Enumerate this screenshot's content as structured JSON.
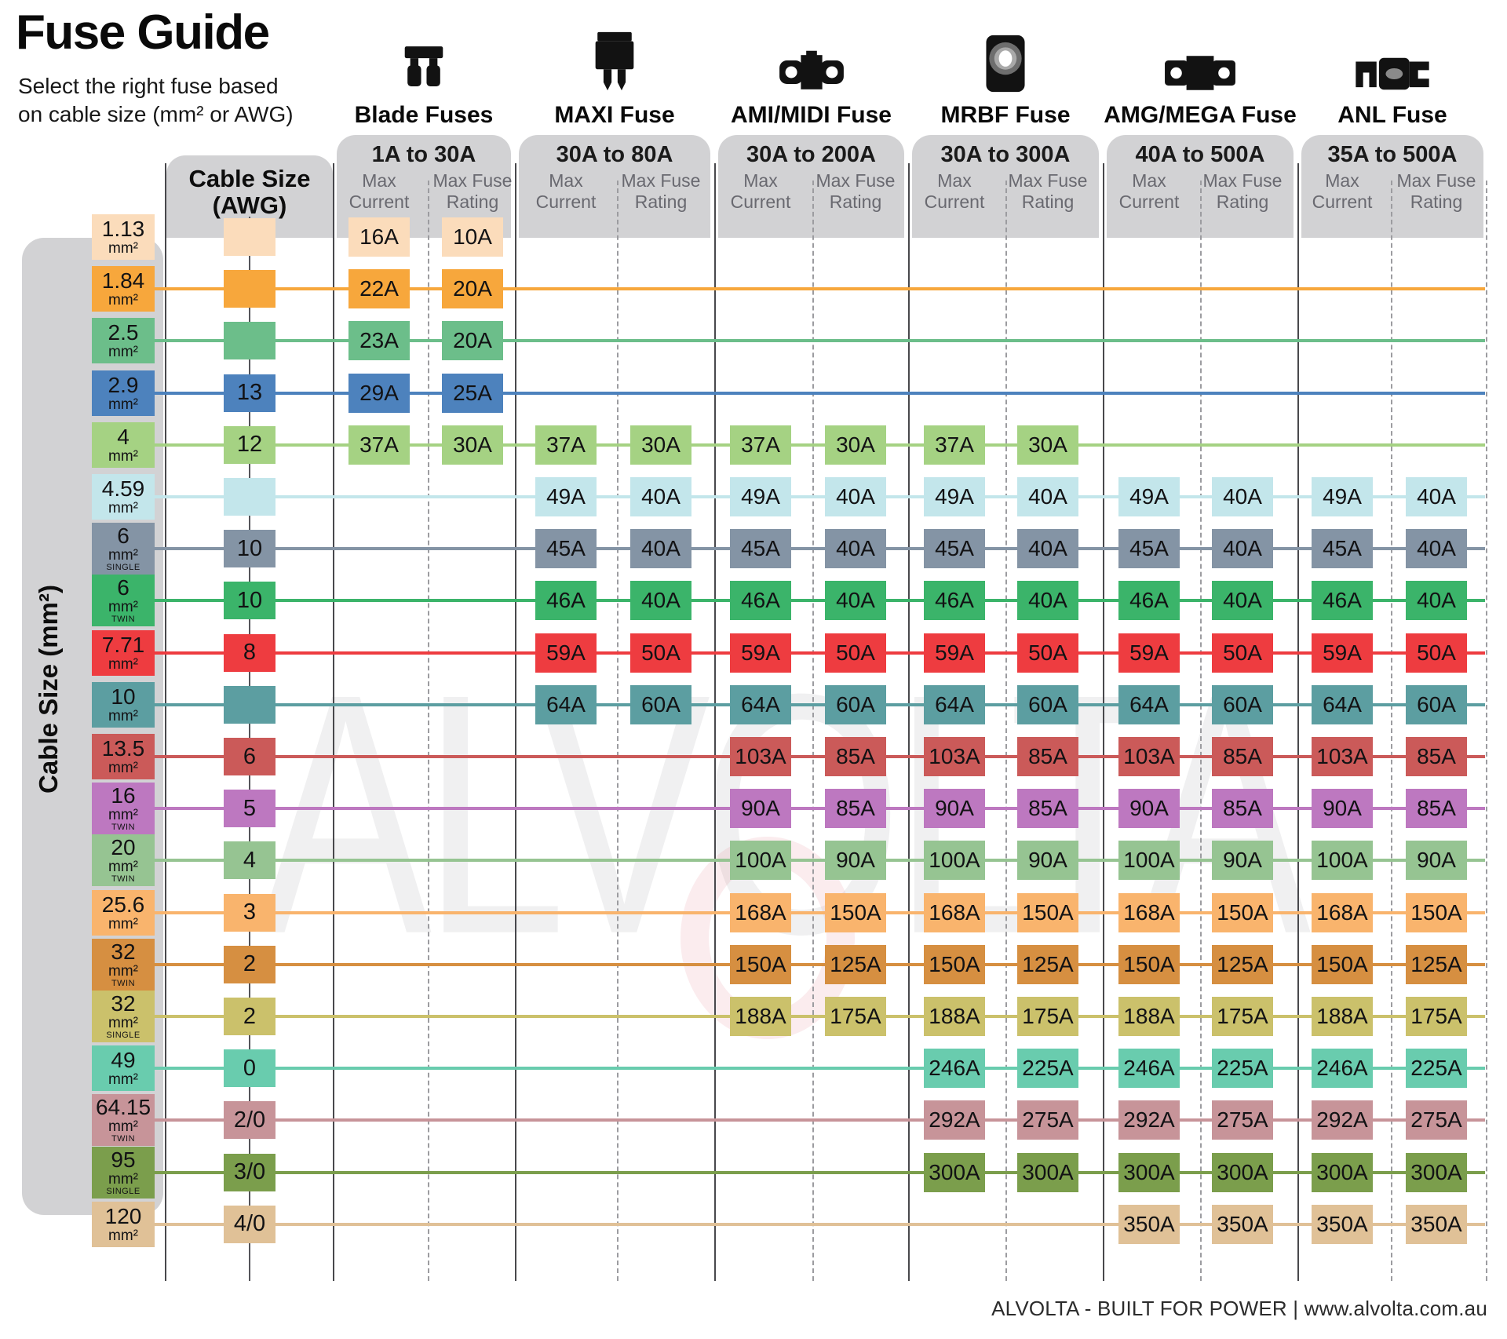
{
  "title": "Fuse Guide",
  "subtitle": {
    "line1": "Select the right fuse based",
    "line2": "on cable size (mm² or AWG)"
  },
  "left_axis_label": "Cable Size (mm²)",
  "awg_header": {
    "line1": "Cable Size",
    "line2": "(AWG)"
  },
  "watermark": {
    "text": "ALVOLTA"
  },
  "footer": "ALVOLTA - BUILT FOR POWER | www.alvolta.com.au",
  "colors": {
    "header_gray": "#d2d2d4",
    "accent_red": "#ee3c40"
  },
  "chart_data": {
    "type": "table",
    "title": "Fuse Guide",
    "mm2_unit": "mm²",
    "sub_columns": [
      "Max Current",
      "Max Fuse Rating"
    ],
    "col_groups": [
      {
        "name": "Blade Fuses",
        "range": "1A to 30A",
        "icon": "blade-fuse-icon"
      },
      {
        "name": "MAXI Fuse",
        "range": "30A to 80A",
        "icon": "maxi-fuse-icon"
      },
      {
        "name": "AMI/MIDI Fuse",
        "range": "30A to 200A",
        "icon": "ami-midi-fuse-icon"
      },
      {
        "name": "MRBF Fuse",
        "range": "30A to 300A",
        "icon": "mrbf-fuse-icon"
      },
      {
        "name": "AMG/MEGA Fuse",
        "range": "40A to 500A",
        "icon": "amg-mega-fuse-icon"
      },
      {
        "name": "ANL Fuse",
        "range": "35A to 500A",
        "icon": "anl-fuse-icon"
      }
    ],
    "rows": [
      {
        "mm2": "1.13",
        "variant": "",
        "awg": "",
        "color": "#fbdcbb",
        "has_line": false,
        "values": [
          [
            "16A",
            "10A"
          ],
          null,
          null,
          null,
          null,
          null
        ]
      },
      {
        "mm2": "1.84",
        "variant": "",
        "awg": "",
        "color": "#f7a73c",
        "has_line": true,
        "values": [
          [
            "22A",
            "20A"
          ],
          null,
          null,
          null,
          null,
          null
        ]
      },
      {
        "mm2": "2.5",
        "variant": "",
        "awg": "",
        "color": "#6cbe8a",
        "has_line": true,
        "values": [
          [
            "23A",
            "20A"
          ],
          null,
          null,
          null,
          null,
          null
        ]
      },
      {
        "mm2": "2.9",
        "variant": "",
        "awg": "13",
        "color": "#4d82bd",
        "has_line": true,
        "values": [
          [
            "29A",
            "25A"
          ],
          null,
          null,
          null,
          null,
          null
        ]
      },
      {
        "mm2": "4",
        "variant": "",
        "awg": "12",
        "color": "#a5d283",
        "has_line": true,
        "values": [
          [
            "37A",
            "30A"
          ],
          [
            "37A",
            "30A"
          ],
          [
            "37A",
            "30A"
          ],
          [
            "37A",
            "30A"
          ],
          null,
          null
        ]
      },
      {
        "mm2": "4.59",
        "variant": "",
        "awg": "",
        "color": "#c3e6eb",
        "has_line": true,
        "values": [
          null,
          [
            "49A",
            "40A"
          ],
          [
            "49A",
            "40A"
          ],
          [
            "49A",
            "40A"
          ],
          [
            "49A",
            "40A"
          ],
          [
            "49A",
            "40A"
          ]
        ]
      },
      {
        "mm2": "6",
        "variant": "SINGLE",
        "awg": "10",
        "color": "#8494a5",
        "has_line": true,
        "values": [
          null,
          [
            "45A",
            "40A"
          ],
          [
            "45A",
            "40A"
          ],
          [
            "45A",
            "40A"
          ],
          [
            "45A",
            "40A"
          ],
          [
            "45A",
            "40A"
          ]
        ]
      },
      {
        "mm2": "6",
        "variant": "TWIN",
        "awg": "10",
        "color": "#3bb46a",
        "has_line": true,
        "values": [
          null,
          [
            "46A",
            "40A"
          ],
          [
            "46A",
            "40A"
          ],
          [
            "46A",
            "40A"
          ],
          [
            "46A",
            "40A"
          ],
          [
            "46A",
            "40A"
          ]
        ]
      },
      {
        "mm2": "7.71",
        "variant": "",
        "awg": "8",
        "color": "#ee3c40",
        "has_line": true,
        "values": [
          null,
          [
            "59A",
            "50A"
          ],
          [
            "59A",
            "50A"
          ],
          [
            "59A",
            "50A"
          ],
          [
            "59A",
            "50A"
          ],
          [
            "59A",
            "50A"
          ]
        ]
      },
      {
        "mm2": "10",
        "variant": "",
        "awg": "",
        "color": "#5c9ea1",
        "has_line": true,
        "values": [
          null,
          [
            "64A",
            "60A"
          ],
          [
            "64A",
            "60A"
          ],
          [
            "64A",
            "60A"
          ],
          [
            "64A",
            "60A"
          ],
          [
            "64A",
            "60A"
          ]
        ]
      },
      {
        "mm2": "13.5",
        "variant": "",
        "awg": "6",
        "color": "#cb5a59",
        "has_line": true,
        "values": [
          null,
          null,
          [
            "103A",
            "85A"
          ],
          [
            "103A",
            "85A"
          ],
          [
            "103A",
            "85A"
          ],
          [
            "103A",
            "85A"
          ]
        ]
      },
      {
        "mm2": "16",
        "variant": "TWIN",
        "awg": "5",
        "color": "#bd78c0",
        "has_line": true,
        "values": [
          null,
          null,
          [
            "90A",
            "85A"
          ],
          [
            "90A",
            "85A"
          ],
          [
            "90A",
            "85A"
          ],
          [
            "90A",
            "85A"
          ]
        ]
      },
      {
        "mm2": "20",
        "variant": "TWIN",
        "awg": "4",
        "color": "#96c492",
        "has_line": true,
        "values": [
          null,
          null,
          [
            "100A",
            "90A"
          ],
          [
            "100A",
            "90A"
          ],
          [
            "100A",
            "90A"
          ],
          [
            "100A",
            "90A"
          ]
        ]
      },
      {
        "mm2": "25.6",
        "variant": "",
        "awg": "3",
        "color": "#f9b46d",
        "has_line": true,
        "values": [
          null,
          null,
          [
            "168A",
            "150A"
          ],
          [
            "168A",
            "150A"
          ],
          [
            "168A",
            "150A"
          ],
          [
            "168A",
            "150A"
          ]
        ]
      },
      {
        "mm2": "32",
        "variant": "TWIN",
        "awg": "2",
        "color": "#d68f41",
        "has_line": true,
        "values": [
          null,
          null,
          [
            "150A",
            "125A"
          ],
          [
            "150A",
            "125A"
          ],
          [
            "150A",
            "125A"
          ],
          [
            "150A",
            "125A"
          ]
        ]
      },
      {
        "mm2": "32",
        "variant": "SINGLE",
        "awg": "2",
        "color": "#cbc16b",
        "has_line": true,
        "values": [
          null,
          null,
          [
            "188A",
            "175A"
          ],
          [
            "188A",
            "175A"
          ],
          [
            "188A",
            "175A"
          ],
          [
            "188A",
            "175A"
          ]
        ]
      },
      {
        "mm2": "49",
        "variant": "",
        "awg": "0",
        "color": "#69ccae",
        "has_line": true,
        "values": [
          null,
          null,
          null,
          [
            "246A",
            "225A"
          ],
          [
            "246A",
            "225A"
          ],
          [
            "246A",
            "225A"
          ]
        ]
      },
      {
        "mm2": "64.15",
        "variant": "TWIN",
        "awg": "2/0",
        "color": "#c79499",
        "has_line": true,
        "values": [
          null,
          null,
          null,
          [
            "292A",
            "275A"
          ],
          [
            "292A",
            "275A"
          ],
          [
            "292A",
            "275A"
          ]
        ]
      },
      {
        "mm2": "95",
        "variant": "SINGLE",
        "awg": "3/0",
        "color": "#7b9e4c",
        "has_line": true,
        "values": [
          null,
          null,
          null,
          [
            "300A",
            "300A"
          ],
          [
            "300A",
            "300A"
          ],
          [
            "300A",
            "300A"
          ]
        ]
      },
      {
        "mm2": "120",
        "variant": "",
        "awg": "4/0",
        "color": "#e0c197",
        "has_line": true,
        "values": [
          null,
          null,
          null,
          null,
          [
            "350A",
            "350A"
          ],
          [
            "350A",
            "350A"
          ]
        ]
      }
    ]
  }
}
